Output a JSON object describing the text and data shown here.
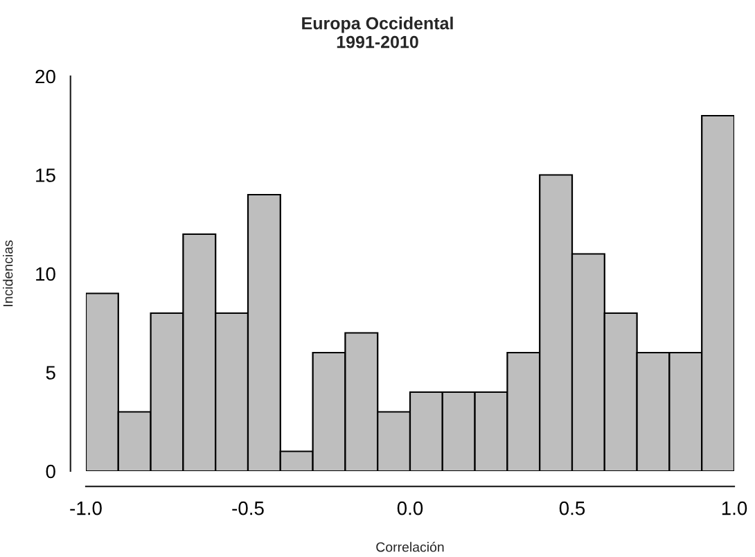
{
  "chart_data": {
    "type": "histogram",
    "title": "Europa Occidental\n1991-2010",
    "xlabel": "Correlación",
    "ylabel": "Incidencias",
    "bins": [
      -1.0,
      -0.9,
      -0.8,
      -0.7,
      -0.6,
      -0.5,
      -0.4,
      -0.3,
      -0.2,
      -0.1,
      0.0,
      0.1,
      0.2,
      0.3,
      0.4,
      0.5,
      0.6,
      0.7,
      0.8,
      0.9,
      1.0
    ],
    "values": [
      9,
      3,
      8,
      12,
      8,
      14,
      1,
      6,
      7,
      3,
      4,
      4,
      4,
      6,
      15,
      11,
      8,
      6,
      6,
      18
    ],
    "color": "#bebebe",
    "xlim": [
      -1.0,
      1.0
    ],
    "ylim": [
      0,
      20
    ],
    "xticks": [
      {
        "value": -1.0,
        "label": "-1.0"
      },
      {
        "value": -0.5,
        "label": "-0.5"
      },
      {
        "value": 0.0,
        "label": "0.0"
      },
      {
        "value": 0.5,
        "label": "0.5"
      },
      {
        "value": 1.0,
        "label": "1.0"
      }
    ],
    "yticks": [
      0,
      5,
      10,
      15,
      20
    ],
    "grid": false
  }
}
